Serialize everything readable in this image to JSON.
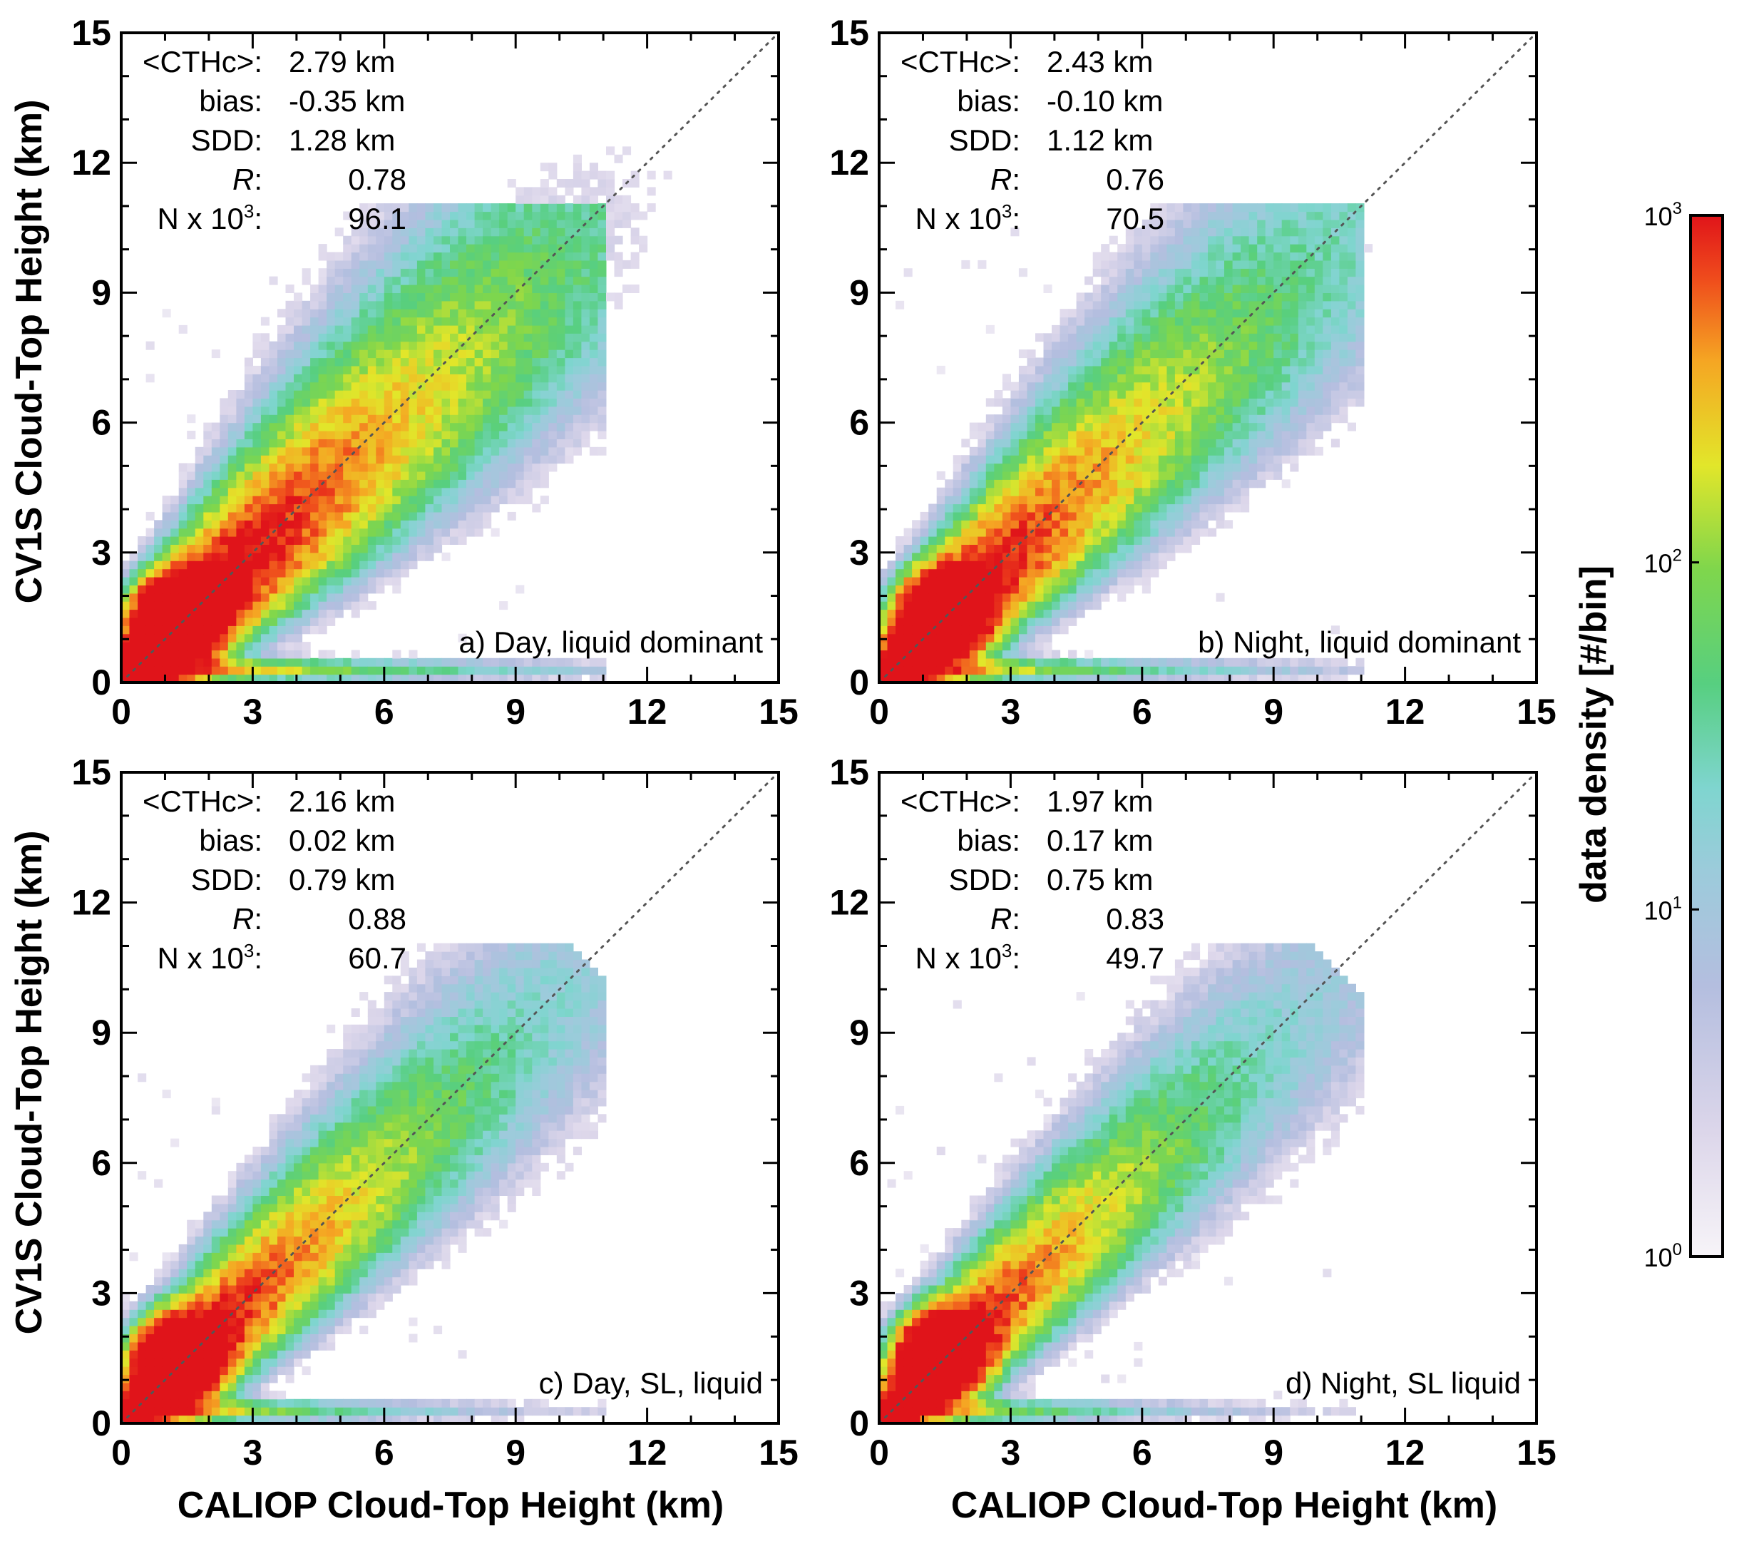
{
  "chart_data": {
    "type": "heatmap",
    "xlabel": "CALIOP Cloud-Top Height (km)",
    "ylabel": "CV1S Cloud-Top Height (km)",
    "xlim": [
      0,
      15
    ],
    "ylim": [
      0,
      15
    ],
    "xticks": [
      "0",
      "3",
      "6",
      "9",
      "12",
      "15"
    ],
    "yticks": [
      "0",
      "3",
      "6",
      "9",
      "12",
      "15"
    ],
    "colorbar": {
      "label": "data density [#/bin]",
      "scale": "log",
      "range": [
        1,
        1000
      ],
      "ticks": [
        {
          "base": "10",
          "exp": "0"
        },
        {
          "base": "10",
          "exp": "1"
        },
        {
          "base": "10",
          "exp": "2"
        },
        {
          "base": "10",
          "exp": "3"
        }
      ],
      "colors": [
        "#ffffff",
        "#e6e0ee",
        "#b8c2e0",
        "#8fd4d6",
        "#55cf77",
        "#8fd94a",
        "#e8e62a",
        "#f5a623",
        "#ef4b1c",
        "#e0141a"
      ]
    },
    "panels": [
      {
        "id": "a",
        "label": "a) Day, liquid dominant",
        "stats": [
          {
            "name": "<CTHc>:",
            "value": "2.79 km"
          },
          {
            "name": "bias:",
            "value": "-0.35 km"
          },
          {
            "name": "SDD:",
            "value": "1.28 km"
          },
          {
            "name": "R:",
            "value": "0.78"
          },
          {
            "name": "N x 10",
            "sup": "3",
            "colon": ":",
            "value": "96.1"
          }
        ],
        "mode": [
          1.3,
          1.5
        ],
        "spread": 1.0,
        "counts_scale": 1.0
      },
      {
        "id": "b",
        "label": "b) Night, liquid dominant",
        "stats": [
          {
            "name": "<CTHc>:",
            "value": "2.43 km"
          },
          {
            "name": "bias:",
            "value": "-0.10 km"
          },
          {
            "name": "SDD:",
            "value": "1.12 km"
          },
          {
            "name": "R:",
            "value": "0.76"
          },
          {
            "name": "N x 10",
            "sup": "3",
            "colon": ":",
            "value": "70.5"
          }
        ],
        "mode": [
          1.5,
          1.6
        ],
        "spread": 0.9,
        "counts_scale": 0.9
      },
      {
        "id": "c",
        "label": "c) Day, SL, liquid",
        "stats": [
          {
            "name": "<CTHc>:",
            "value": "2.16 km"
          },
          {
            "name": "bias:",
            "value": "0.02 km"
          },
          {
            "name": "SDD:",
            "value": "0.79 km"
          },
          {
            "name": "R:",
            "value": "0.88"
          },
          {
            "name": "N x 10",
            "sup": "3",
            "colon": ":",
            "value": "60.7"
          }
        ],
        "mode": [
          1.3,
          1.5
        ],
        "spread": 0.75,
        "counts_scale": 0.85
      },
      {
        "id": "d",
        "label": "d) Night, SL liquid",
        "stats": [
          {
            "name": "<CTHc>:",
            "value": "1.97 km"
          },
          {
            "name": "bias:",
            "value": "0.17 km"
          },
          {
            "name": "SDD:",
            "value": "0.75 km"
          },
          {
            "name": "R:",
            "value": "0.83"
          },
          {
            "name": "N x 10",
            "sup": "3",
            "colon": ":",
            "value": "49.7"
          }
        ],
        "mode": [
          1.4,
          1.6
        ],
        "spread": 0.7,
        "counts_scale": 0.8
      }
    ]
  }
}
